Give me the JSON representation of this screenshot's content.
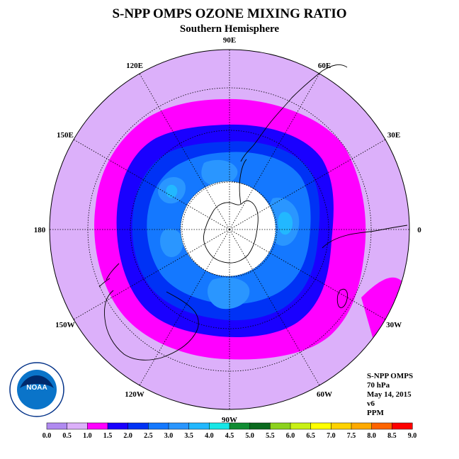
{
  "title": "S-NPP OMPS OZONE MIXING RATIO",
  "subtitle": "Southern Hemisphere",
  "longitude_labels": [
    {
      "text": "90W",
      "lon": -90
    },
    {
      "text": "60W",
      "lon": -60
    },
    {
      "text": "30W",
      "lon": -30
    },
    {
      "text": "0",
      "lon": 0
    },
    {
      "text": "30E",
      "lon": 30
    },
    {
      "text": "60E",
      "lon": 60
    },
    {
      "text": "90E",
      "lon": 90
    },
    {
      "text": "120E",
      "lon": 120
    },
    {
      "text": "150E",
      "lon": 150
    },
    {
      "text": "180",
      "lon": 180
    },
    {
      "text": "150W",
      "lon": -150
    },
    {
      "text": "120W",
      "lon": -120
    }
  ],
  "info": {
    "satellite": "S-NPP OMPS",
    "level": "70 hPa",
    "date": "May 14, 2015",
    "version": "v6",
    "units": "PPM"
  },
  "logo_text": "NOAA",
  "colorbar": {
    "ticks": [
      "0.0",
      "0.5",
      "1.0",
      "1.5",
      "2.0",
      "2.5",
      "3.0",
      "3.5",
      "4.0",
      "4.5",
      "5.0",
      "5.5",
      "6.0",
      "6.5",
      "7.0",
      "7.5",
      "8.0",
      "8.5",
      "9.0"
    ],
    "colors": [
      "#b08af0",
      "#dcb0fa",
      "#ff00ff",
      "#1a00ff",
      "#0032f5",
      "#1478ff",
      "#2a96ff",
      "#22b8ff",
      "#16e6e6",
      "#0f8c32",
      "#0a6a1e",
      "#8cd21e",
      "#c8f014",
      "#ffff00",
      "#ffd200",
      "#ffaa00",
      "#ff6400",
      "#ff0000",
      "#8c5a3c"
    ]
  },
  "map_data": {
    "projection": "polar-stereographic-south",
    "zero_longitude_direction": "right",
    "missing_region": "polar night (white)",
    "contours_ppm": [
      {
        "level": 1.0,
        "color": "#ff00ff",
        "desc": "band around 45-60S"
      },
      {
        "level": 1.5,
        "color": "#1a00ff",
        "desc": "dark blue ring"
      },
      {
        "level": 2.0,
        "color": "#0032f5",
        "desc": "inner ring"
      },
      {
        "level": 2.5,
        "color": "#1478ff",
        "desc": "core blue"
      },
      {
        "level": 3.0,
        "color": "#2a96ff",
        "desc": "patches near vortex edge"
      },
      {
        "level": 3.5,
        "color": "#22b8ff",
        "desc": "small patches"
      }
    ]
  }
}
